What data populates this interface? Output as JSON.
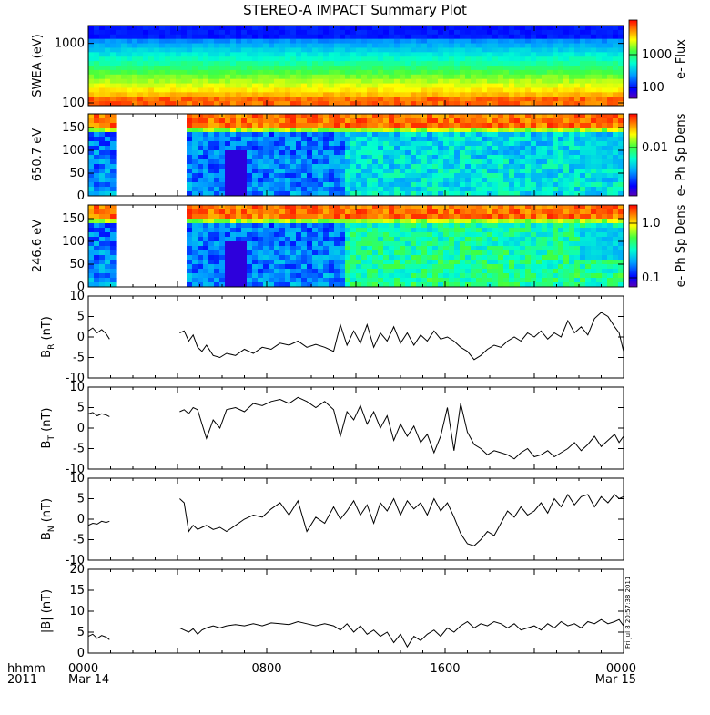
{
  "title": "STEREO-A IMPACT Summary Plot",
  "chart_data": [
    {
      "type": "heatmap",
      "ylabel": "SWEA (eV)",
      "yscale": "log",
      "ylim": [
        90,
        2000
      ],
      "yticks": [
        "1000",
        "100"
      ],
      "colorbar_label": "e- Flux",
      "colorbar_scale": "log",
      "colorbar_ticks": [
        "1000",
        "100"
      ],
      "gaps": []
    },
    {
      "type": "heatmap",
      "ylabel": "650.7 eV",
      "ylim": [
        0,
        180
      ],
      "yticks": [
        "150",
        "100",
        "50",
        "0"
      ],
      "colorbar_label": "e- Ph Sp Dens",
      "colorbar_scale": "log",
      "colorbar_ticks": [
        "0.01"
      ],
      "gaps": [
        [
          1.2,
          4.4
        ]
      ]
    },
    {
      "type": "heatmap",
      "ylabel": "246.6 eV",
      "ylim": [
        0,
        180
      ],
      "yticks": [
        "150",
        "100",
        "50",
        "0"
      ],
      "colorbar_label": "e- Ph Sp Dens",
      "colorbar_scale": "log",
      "colorbar_ticks": [
        "1.0",
        "0.1"
      ],
      "gaps": [
        [
          1.2,
          4.4
        ]
      ]
    },
    {
      "type": "line",
      "ylabel_main": "B",
      "ylabel_sub": "R",
      "ylabel_unit": " (nT)",
      "ylim": [
        -10,
        10
      ],
      "yticks": [
        "10",
        "5",
        "0",
        "-5",
        "-10"
      ],
      "gap": [
        0.95,
        4.1
      ],
      "x": [
        0,
        0.2,
        0.4,
        0.6,
        0.8,
        0.95,
        4.1,
        4.3,
        4.5,
        4.7,
        4.9,
        5.1,
        5.3,
        5.6,
        5.9,
        6.2,
        6.6,
        7.0,
        7.4,
        7.8,
        8.2,
        8.6,
        9.0,
        9.4,
        9.8,
        10.2,
        10.6,
        11.0,
        11.3,
        11.6,
        11.9,
        12.2,
        12.5,
        12.8,
        13.1,
        13.4,
        13.7,
        14.0,
        14.3,
        14.6,
        14.9,
        15.2,
        15.5,
        15.8,
        16.1,
        16.4,
        16.7,
        17.0,
        17.3,
        17.6,
        17.9,
        18.2,
        18.5,
        18.8,
        19.1,
        19.4,
        19.7,
        20.0,
        20.3,
        20.6,
        20.9,
        21.2,
        21.5,
        21.8,
        22.1,
        22.4,
        22.7,
        23.0,
        23.3,
        23.6,
        23.8,
        24.0
      ],
      "y": [
        1.5,
        2.2,
        1.0,
        1.8,
        0.8,
        -0.5,
        1.0,
        1.5,
        -1.0,
        0.5,
        -2.5,
        -3.5,
        -2.0,
        -4.5,
        -5.0,
        -4.0,
        -4.5,
        -3.0,
        -4.0,
        -2.5,
        -3.0,
        -1.5,
        -2.0,
        -1.0,
        -2.5,
        -1.8,
        -2.5,
        -3.5,
        3.0,
        -2.0,
        1.5,
        -1.5,
        3.0,
        -2.5,
        1.0,
        -1.0,
        2.5,
        -1.5,
        1.0,
        -2.0,
        0.5,
        -1.0,
        1.5,
        -0.5,
        0.0,
        -1.0,
        -2.5,
        -3.5,
        -5.5,
        -4.5,
        -3.0,
        -2.0,
        -2.5,
        -1.0,
        0.0,
        -1.0,
        1.0,
        0.0,
        1.5,
        -0.5,
        1.0,
        0.0,
        4.0,
        1.0,
        2.5,
        0.5,
        4.5,
        6.0,
        5.0,
        2.5,
        1.0,
        -3.5
      ]
    },
    {
      "type": "line",
      "ylabel_main": "B",
      "ylabel_sub": "T",
      "ylabel_unit": " (nT)",
      "ylim": [
        -10,
        10
      ],
      "yticks": [
        "10",
        "5",
        "0",
        "-5",
        "-10"
      ],
      "gap": [
        0.95,
        4.1
      ],
      "x": [
        0,
        0.2,
        0.4,
        0.6,
        0.8,
        0.95,
        4.1,
        4.3,
        4.5,
        4.7,
        4.9,
        5.1,
        5.3,
        5.6,
        5.9,
        6.2,
        6.6,
        7.0,
        7.4,
        7.8,
        8.2,
        8.6,
        9.0,
        9.4,
        9.8,
        10.2,
        10.6,
        11.0,
        11.3,
        11.6,
        11.9,
        12.2,
        12.5,
        12.8,
        13.1,
        13.4,
        13.7,
        14.0,
        14.3,
        14.6,
        14.9,
        15.2,
        15.5,
        15.8,
        16.1,
        16.4,
        16.7,
        17.0,
        17.3,
        17.6,
        17.9,
        18.2,
        18.5,
        18.8,
        19.1,
        19.4,
        19.7,
        20.0,
        20.3,
        20.6,
        20.9,
        21.2,
        21.5,
        21.8,
        22.1,
        22.4,
        22.7,
        23.0,
        23.3,
        23.6,
        23.8,
        24.0
      ],
      "y": [
        3.5,
        3.8,
        3.0,
        3.5,
        3.2,
        2.8,
        4.0,
        4.5,
        3.5,
        5.0,
        4.5,
        1.0,
        -2.5,
        2.0,
        0.0,
        4.5,
        5.0,
        4.0,
        6.0,
        5.5,
        6.5,
        7.0,
        6.0,
        7.5,
        6.5,
        5.0,
        6.5,
        4.5,
        -2.0,
        4.0,
        2.0,
        5.5,
        1.0,
        4.0,
        0.0,
        3.0,
        -3.0,
        1.0,
        -2.0,
        0.5,
        -3.5,
        -1.5,
        -6.0,
        -2.0,
        5.0,
        -5.5,
        6.0,
        -1.0,
        -4.0,
        -5.0,
        -6.5,
        -5.5,
        -6.0,
        -6.5,
        -7.5,
        -6.0,
        -5.0,
        -7.0,
        -6.5,
        -5.5,
        -7.0,
        -6.0,
        -5.0,
        -3.5,
        -5.5,
        -4.0,
        -2.0,
        -4.5,
        -3.0,
        -1.5,
        -3.5,
        -2.0
      ]
    },
    {
      "type": "line",
      "ylabel_main": "B",
      "ylabel_sub": "N",
      "ylabel_unit": " (nT)",
      "ylim": [
        -10,
        10
      ],
      "yticks": [
        "10",
        "5",
        "0",
        "-5",
        "-10"
      ],
      "gap": [
        0.95,
        4.1
      ],
      "x": [
        0,
        0.2,
        0.4,
        0.6,
        0.8,
        0.95,
        4.1,
        4.3,
        4.5,
        4.7,
        4.9,
        5.1,
        5.3,
        5.6,
        5.9,
        6.2,
        6.6,
        7.0,
        7.4,
        7.8,
        8.2,
        8.6,
        9.0,
        9.4,
        9.8,
        10.2,
        10.6,
        11.0,
        11.3,
        11.6,
        11.9,
        12.2,
        12.5,
        12.8,
        13.1,
        13.4,
        13.7,
        14.0,
        14.3,
        14.6,
        14.9,
        15.2,
        15.5,
        15.8,
        16.1,
        16.4,
        16.7,
        17.0,
        17.3,
        17.6,
        17.9,
        18.2,
        18.5,
        18.8,
        19.1,
        19.4,
        19.7,
        20.0,
        20.3,
        20.6,
        20.9,
        21.2,
        21.5,
        21.8,
        22.1,
        22.4,
        22.7,
        23.0,
        23.3,
        23.6,
        23.8,
        24.0
      ],
      "y": [
        -1.5,
        -1.0,
        -1.2,
        -0.5,
        -0.8,
        -0.5,
        5.0,
        4.0,
        -3.0,
        -1.5,
        -2.5,
        -2.0,
        -1.5,
        -2.5,
        -2.0,
        -3.0,
        -1.5,
        0.0,
        1.0,
        0.5,
        2.5,
        4.0,
        1.0,
        4.5,
        -3.0,
        0.5,
        -1.0,
        3.0,
        0.0,
        2.0,
        4.5,
        1.0,
        3.5,
        -1.0,
        4.0,
        2.0,
        5.0,
        1.0,
        4.5,
        2.5,
        4.0,
        1.0,
        5.0,
        2.0,
        4.0,
        0.5,
        -3.5,
        -6.0,
        -6.5,
        -5.0,
        -3.0,
        -4.0,
        -1.0,
        2.0,
        0.5,
        3.0,
        1.0,
        2.0,
        4.0,
        1.5,
        5.0,
        3.0,
        6.0,
        3.5,
        5.5,
        6.0,
        3.0,
        5.5,
        4.0,
        6.0,
        5.0,
        5.5
      ]
    },
    {
      "type": "line",
      "ylabel_main": "|B|",
      "ylabel_sub": "",
      "ylabel_unit": " (nT)",
      "ylim": [
        0,
        20
      ],
      "yticks": [
        "20",
        "15",
        "10",
        "5",
        "0"
      ],
      "gap": [
        0.95,
        4.1
      ],
      "x": [
        0,
        0.2,
        0.4,
        0.6,
        0.8,
        0.95,
        4.1,
        4.3,
        4.5,
        4.7,
        4.9,
        5.1,
        5.3,
        5.6,
        5.9,
        6.2,
        6.6,
        7.0,
        7.4,
        7.8,
        8.2,
        8.6,
        9.0,
        9.4,
        9.8,
        10.2,
        10.6,
        11.0,
        11.3,
        11.6,
        11.9,
        12.2,
        12.5,
        12.8,
        13.1,
        13.4,
        13.7,
        14.0,
        14.3,
        14.6,
        14.9,
        15.2,
        15.5,
        15.8,
        16.1,
        16.4,
        16.7,
        17.0,
        17.3,
        17.6,
        17.9,
        18.2,
        18.5,
        18.8,
        19.1,
        19.4,
        19.7,
        20.0,
        20.3,
        20.6,
        20.9,
        21.2,
        21.5,
        21.8,
        22.1,
        22.4,
        22.7,
        23.0,
        23.3,
        23.6,
        23.8,
        24.0
      ],
      "y": [
        4.0,
        4.5,
        3.5,
        4.2,
        3.8,
        3.2,
        6.0,
        5.5,
        5.0,
        5.8,
        4.5,
        5.5,
        6.0,
        6.5,
        6.0,
        6.5,
        6.8,
        6.5,
        7.0,
        6.5,
        7.2,
        7.0,
        6.8,
        7.5,
        7.0,
        6.5,
        7.0,
        6.5,
        5.5,
        7.0,
        5.0,
        6.5,
        4.5,
        5.5,
        4.0,
        5.0,
        2.5,
        4.5,
        1.5,
        4.0,
        3.0,
        4.5,
        5.5,
        4.0,
        6.0,
        5.0,
        6.5,
        7.5,
        6.0,
        7.0,
        6.5,
        7.5,
        7.0,
        6.0,
        7.0,
        5.5,
        6.0,
        6.5,
        5.5,
        7.0,
        6.0,
        7.5,
        6.5,
        7.0,
        6.0,
        7.5,
        7.0,
        8.0,
        7.0,
        7.5,
        8.0,
        6.5
      ]
    }
  ],
  "xaxis": {
    "range": [
      0,
      24
    ],
    "tick_labels": [
      {
        "x": 0,
        "label": "0000",
        "sub": "Mar 14"
      },
      {
        "x": 8,
        "label": "0800",
        "sub": ""
      },
      {
        "x": 16,
        "label": "1600",
        "sub": ""
      },
      {
        "x": 24,
        "label": "0000",
        "sub": "Mar 15"
      }
    ],
    "left_label_top": "hhmm",
    "left_label_bottom": "2011"
  },
  "stamp": "Fri Jul 8 20:57:38 2011"
}
